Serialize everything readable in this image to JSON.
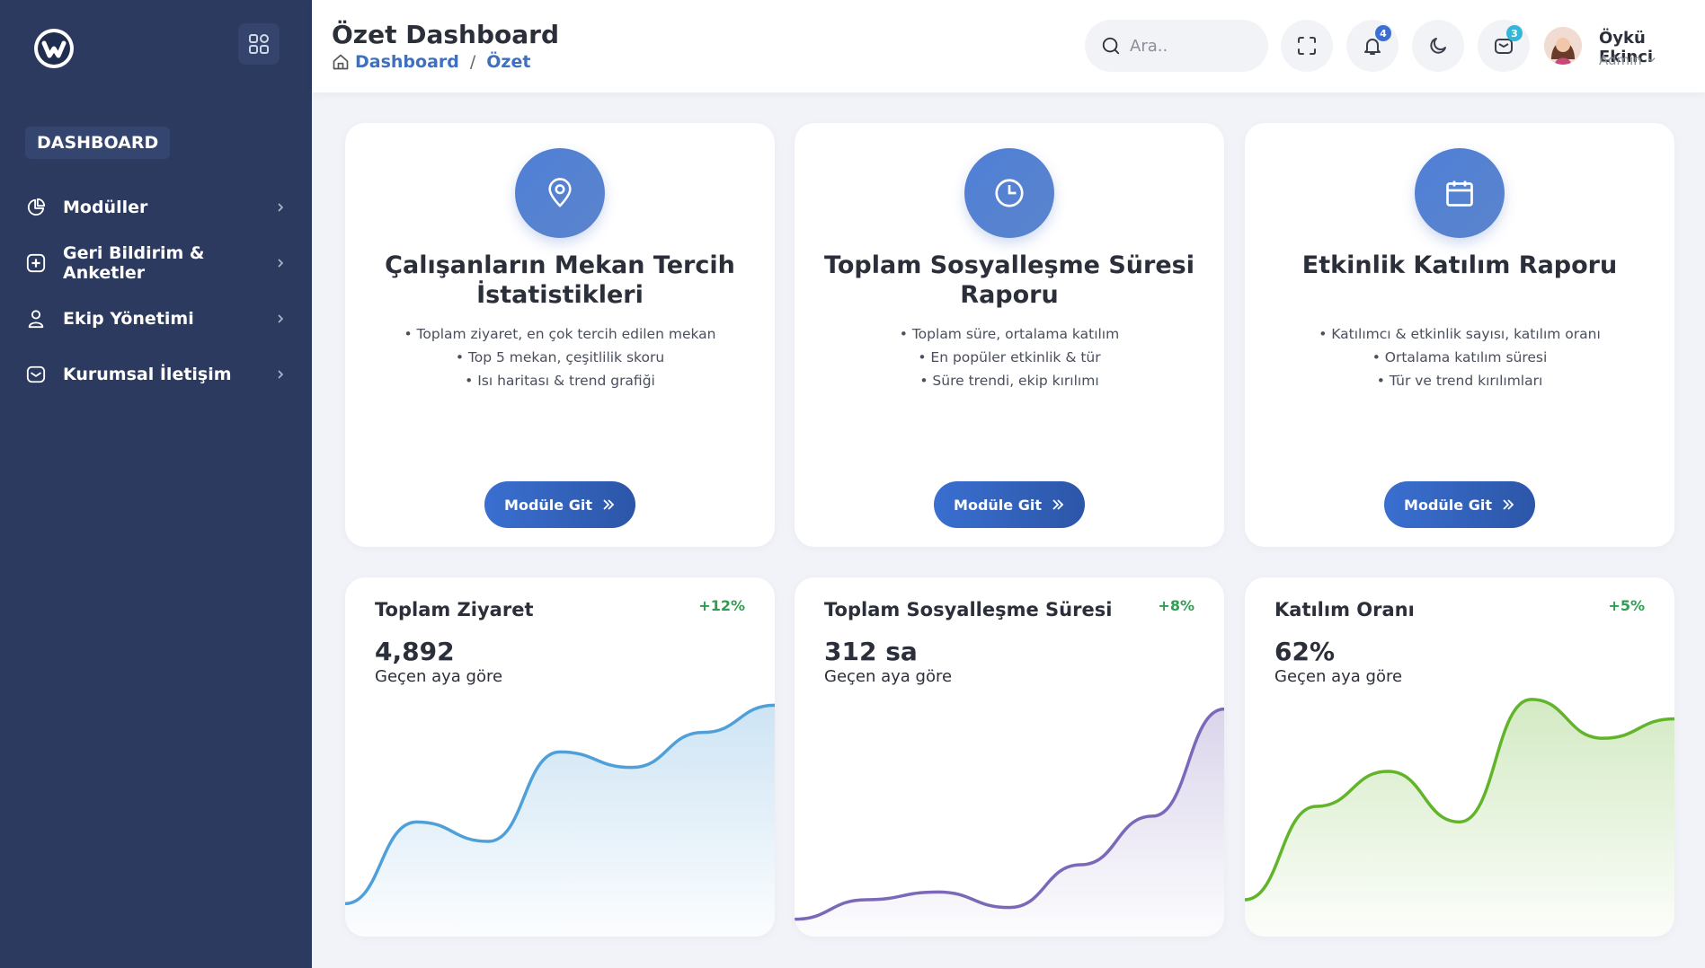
{
  "sidebar": {
    "section_label": "DASHBOARD",
    "items": [
      {
        "label": "Modüller",
        "icon": "pie-chart-icon"
      },
      {
        "label": "Geri Bildirim & Anketler",
        "icon": "plus-square-icon"
      },
      {
        "label": "Ekip Yönetimi",
        "icon": "user-icon"
      },
      {
        "label": "Kurumsal İletişim",
        "icon": "mail-icon"
      }
    ]
  },
  "header": {
    "title": "Özet Dashboard",
    "breadcrumb": {
      "home": "Dashboard",
      "current": "Özet",
      "separator": "/"
    },
    "search_placeholder": "Ara..",
    "notifications_count": "4",
    "messages_count": "3",
    "user": {
      "name": "Öykü Ekinci",
      "role": "Admin"
    }
  },
  "modules": [
    {
      "icon": "map-pin-icon",
      "title": "Çalışanların Mekan Tercih İstatistikleri",
      "bullets": [
        "• Toplam ziyaret, en çok tercih edilen mekan",
        "• Top 5 mekan, çeşitlilik skoru",
        "• Isı haritası & trend grafiği"
      ],
      "button": "Modüle Git"
    },
    {
      "icon": "clock-icon",
      "title": "Toplam Sosyalleşme Süresi Raporu",
      "bullets": [
        "• Toplam süre, ortalama katılım",
        "• En popüler etkinlik & tür",
        "• Süre trendi, ekip kırılımı"
      ],
      "button": "Modüle Git"
    },
    {
      "icon": "calendar-icon",
      "title": "Etkinlik Katılım Raporu",
      "bullets": [
        "• Katılımcı & etkinlik sayısı, katılım oranı",
        "• Ortalama katılım süresi",
        "• Tür ve trend kırılımları"
      ],
      "button": "Modüle Git"
    }
  ],
  "stats": [
    {
      "title": "Toplam Ziyaret",
      "value": "4,892",
      "sub": "Geçen aya göre",
      "change": "+12%"
    },
    {
      "title": "Toplam Sosyalleşme Süresi",
      "value": "312 sa",
      "sub": "Geçen aya göre",
      "change": "+8%"
    },
    {
      "title": "Katılım Oranı",
      "value": "62%",
      "sub": "Geçen aya göre",
      "change": "+5%"
    }
  ],
  "chart_data": [
    {
      "type": "area",
      "color": "#4f9fd8",
      "values": [
        10,
        52,
        42,
        88,
        80,
        98,
        112
      ]
    },
    {
      "type": "area",
      "color": "#7b68b8",
      "values": [
        2,
        12,
        16,
        8,
        30,
        55,
        110
      ]
    },
    {
      "type": "area",
      "color": "#62b42a",
      "values": [
        12,
        60,
        78,
        52,
        115,
        95,
        105
      ]
    }
  ]
}
